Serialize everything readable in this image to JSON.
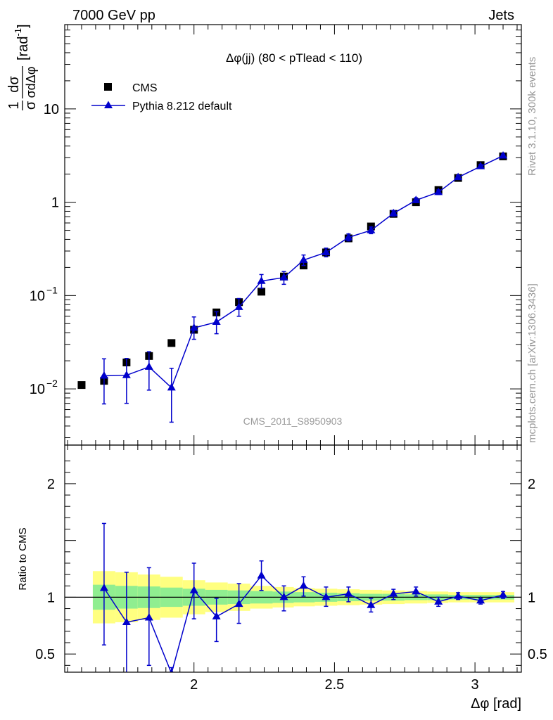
{
  "header": {
    "energy_label": "7000 GeV pp",
    "process_label": "Jets"
  },
  "side_labels": {
    "rivet": "Rivet 3.1.10,  300k events",
    "source": "mcplots.cern.ch [arXiv:1306.3436]"
  },
  "watermark": "CMS_2011_S8950903",
  "colors": {
    "data": "#000000",
    "mc": "#0000cc",
    "band_inner": "#90ee90",
    "band_outer": "#ffff80"
  },
  "chart_data": [
    {
      "type": "scatter",
      "panel": "main",
      "title": "Δφ(jj) (80 < pTlead <  110)",
      "ylabel_prefix": "1",
      "ylabel_numerator": "dσ",
      "ylabel_denominator": "σdΔφ",
      "ylabel_unit": "[rad",
      "ylabel_unit_exp": "-1",
      "ylabel_unit_close": "]",
      "yscale": "log",
      "xlim": [
        1.54,
        3.165
      ],
      "ylim": [
        0.0025,
        80
      ],
      "yticks": [
        {
          "value": 10,
          "label": "10"
        },
        {
          "value": 1,
          "label": "1"
        },
        {
          "value": 0.1,
          "label": "10",
          "exp": "−1"
        },
        {
          "value": 0.01,
          "label": "10",
          "exp": "−2"
        }
      ],
      "legend": [
        {
          "label": "CMS",
          "marker": "square"
        },
        {
          "label": "Pythia 8.212 default",
          "marker": "triangle-line"
        }
      ],
      "series": [
        {
          "name": "CMS",
          "x": [
            1.6,
            1.68,
            1.76,
            1.84,
            1.92,
            2.0,
            2.08,
            2.16,
            2.24,
            2.32,
            2.39,
            2.47,
            2.55,
            2.63,
            2.71,
            2.79,
            2.87,
            2.94,
            3.02,
            3.1
          ],
          "y": [
            0.011,
            0.0122,
            0.0192,
            0.0225,
            0.031,
            0.043,
            0.066,
            0.085,
            0.11,
            0.16,
            0.21,
            0.29,
            0.41,
            0.55,
            0.75,
            1.0,
            1.35,
            1.82,
            2.5,
            3.1
          ]
        },
        {
          "name": "Pythia 8.212 default",
          "x": [
            1.68,
            1.76,
            1.84,
            1.92,
            2.0,
            2.08,
            2.16,
            2.24,
            2.32,
            2.39,
            2.47,
            2.55,
            2.63,
            2.71,
            2.79,
            2.87,
            2.94,
            3.02,
            3.1
          ],
          "y": [
            0.0138,
            0.014,
            0.0172,
            0.0103,
            0.045,
            0.052,
            0.075,
            0.143,
            0.156,
            0.24,
            0.29,
            0.42,
            0.5,
            0.76,
            1.05,
            1.28,
            1.85,
            2.42,
            3.15
          ],
          "err_low": [
            0.0069,
            0.007,
            0.0075,
            0.0059,
            0.011,
            0.013,
            0.015,
            0.023,
            0.024,
            0.03,
            0.03,
            0.035,
            0.04,
            0.05,
            0.06,
            0.07,
            0.08,
            0.1,
            0.12
          ],
          "err_high": [
            0.0072,
            0.0072,
            0.0078,
            0.0063,
            0.014,
            0.015,
            0.018,
            0.025,
            0.025,
            0.032,
            0.032,
            0.038,
            0.043,
            0.055,
            0.065,
            0.075,
            0.085,
            0.11,
            0.13
          ]
        }
      ]
    },
    {
      "type": "line",
      "panel": "ratio",
      "ylabel": "Ratio to CMS",
      "xlabel": "Δφ [rad]",
      "xlim": [
        1.54,
        3.165
      ],
      "ylim": [
        0.34,
        2.34
      ],
      "xticks": [
        {
          "value": 2.0,
          "label": "2"
        },
        {
          "value": 2.5,
          "label": "2.5"
        },
        {
          "value": 3.0,
          "label": "3"
        }
      ],
      "yticks": [
        {
          "value": 0.5,
          "label": "0.5"
        },
        {
          "value": 1.0,
          "label": "1"
        },
        {
          "value": 2.0,
          "label": "2"
        }
      ],
      "bands": {
        "edges": [
          1.64,
          1.72,
          1.8,
          1.88,
          1.96,
          2.04,
          2.12,
          2.2,
          2.28,
          2.355,
          2.43,
          2.51,
          2.59,
          2.67,
          2.75,
          2.83,
          2.905,
          2.98,
          3.06,
          3.14
        ],
        "inner_half_width": [
          0.11,
          0.1,
          0.095,
          0.085,
          0.075,
          0.065,
          0.06,
          0.055,
          0.05,
          0.045,
          0.04,
          0.035,
          0.03,
          0.03,
          0.025,
          0.025,
          0.02,
          0.02,
          0.02
        ],
        "outer_half_width": [
          0.23,
          0.22,
          0.2,
          0.18,
          0.15,
          0.13,
          0.12,
          0.1,
          0.09,
          0.08,
          0.075,
          0.07,
          0.065,
          0.06,
          0.055,
          0.05,
          0.045,
          0.045,
          0.045
        ]
      },
      "series": [
        {
          "name": "Pythia 8.212 default",
          "x": [
            1.68,
            1.76,
            1.84,
            1.92,
            2.0,
            2.08,
            2.16,
            2.24,
            2.32,
            2.39,
            2.47,
            2.55,
            2.63,
            2.71,
            2.79,
            2.87,
            2.94,
            3.02,
            3.1
          ],
          "y": [
            1.08,
            0.78,
            0.82,
            0.33,
            1.06,
            0.83,
            0.94,
            1.19,
            1.0,
            1.1,
            1.0,
            1.03,
            0.93,
            1.03,
            1.05,
            0.96,
            1.01,
            0.97,
            1.02
          ],
          "err_low": [
            0.5,
            0.45,
            0.42,
            0.05,
            0.25,
            0.22,
            0.17,
            0.13,
            0.12,
            0.09,
            0.08,
            0.07,
            0.06,
            0.05,
            0.04,
            0.04,
            0.03,
            0.03,
            0.03
          ],
          "err_high": [
            0.57,
            0.44,
            0.44,
            0.05,
            0.24,
            0.16,
            0.18,
            0.13,
            0.1,
            0.08,
            0.09,
            0.06,
            0.06,
            0.04,
            0.04,
            0.04,
            0.03,
            0.02,
            0.03
          ]
        }
      ]
    }
  ]
}
